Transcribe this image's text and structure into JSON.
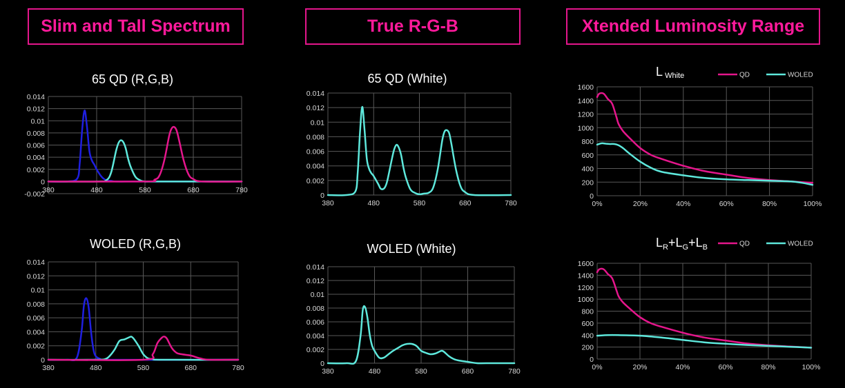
{
  "headers": [
    "Slim and Tall Spectrum",
    "True R-G-B",
    "Xtended Luminosity Range"
  ],
  "colors": {
    "accent": "#e5168c",
    "blue": "#1f1fe0",
    "cyan": "#5ee8dc",
    "magenta": "#e5168c",
    "grid": "#595959"
  },
  "chart_data": [
    {
      "id": "qd-rgb",
      "type": "line",
      "title": "65 QD (R,G,B)",
      "xlim": [
        380,
        780
      ],
      "ylim": [
        -0.002,
        0.014
      ],
      "xticks": [
        380,
        480,
        580,
        680,
        780
      ],
      "yticks": [
        -0.002,
        0,
        0.002,
        0.004,
        0.006,
        0.008,
        0.01,
        0.012,
        0.014
      ],
      "ytick_labels": [
        "-0.002",
        "0",
        "0.002",
        "0.004",
        "0.006",
        "0.008",
        "0.01",
        "0.012",
        "0.014"
      ],
      "series": [
        {
          "color": "blue",
          "x": [
            380,
            420,
            440,
            445,
            450,
            455,
            460,
            465,
            470,
            475,
            480,
            490,
            500,
            510,
            520,
            560,
            640,
            780
          ],
          "y": [
            0,
            0,
            0.0005,
            0.003,
            0.0085,
            0.0117,
            0.009,
            0.005,
            0.0035,
            0.0028,
            0.002,
            0.0008,
            0.0002,
            0.0001,
            0,
            0,
            0,
            0
          ]
        },
        {
          "color": "cyan",
          "x": [
            380,
            480,
            500,
            510,
            520,
            525,
            530,
            535,
            540,
            545,
            550,
            560,
            570,
            580,
            600,
            780
          ],
          "y": [
            0,
            0,
            0.0002,
            0.0015,
            0.005,
            0.0063,
            0.0068,
            0.0065,
            0.0055,
            0.0038,
            0.0025,
            0.0008,
            0.0002,
            0,
            0,
            0
          ]
        },
        {
          "color": "magenta",
          "x": [
            380,
            580,
            600,
            610,
            620,
            630,
            635,
            640,
            645,
            650,
            660,
            670,
            680,
            700,
            780
          ],
          "y": [
            0,
            0,
            0.0003,
            0.001,
            0.0035,
            0.0075,
            0.0087,
            0.009,
            0.0085,
            0.007,
            0.0035,
            0.0012,
            0.0004,
            0,
            0
          ]
        }
      ]
    },
    {
      "id": "woled-rgb",
      "type": "line",
      "title": "WOLED (R,G,B)",
      "xlim": [
        380,
        780
      ],
      "ylim": [
        0,
        0.014
      ],
      "xticks": [
        380,
        480,
        580,
        680,
        780
      ],
      "yticks": [
        0,
        0.002,
        0.004,
        0.006,
        0.008,
        0.01,
        0.012,
        0.014
      ],
      "ytick_labels": [
        "0",
        "0.002",
        "0.004",
        "0.006",
        "0.008",
        "0.01",
        "0.012",
        "0.014"
      ],
      "series": [
        {
          "color": "blue",
          "x": [
            380,
            420,
            440,
            450,
            455,
            460,
            465,
            470,
            475,
            480,
            490,
            500,
            780
          ],
          "y": [
            0,
            0,
            0.0003,
            0.004,
            0.0078,
            0.0088,
            0.0075,
            0.004,
            0.0015,
            0.0005,
            0.0001,
            0,
            0
          ]
        },
        {
          "color": "cyan",
          "x": [
            380,
            480,
            500,
            510,
            520,
            530,
            540,
            550,
            555,
            560,
            570,
            580,
            590,
            600,
            620,
            780
          ],
          "y": [
            0,
            0,
            0.0001,
            0.0006,
            0.0015,
            0.0027,
            0.0029,
            0.0032,
            0.0033,
            0.003,
            0.002,
            0.0008,
            0.0002,
            0.0001,
            0,
            0
          ]
        },
        {
          "color": "magenta",
          "x": [
            380,
            580,
            600,
            610,
            620,
            625,
            630,
            640,
            650,
            660,
            680,
            700,
            720,
            780
          ],
          "y": [
            0,
            0,
            0.0008,
            0.0024,
            0.0032,
            0.0033,
            0.003,
            0.0017,
            0.001,
            0.0008,
            0.0006,
            0.0002,
            0,
            0
          ]
        }
      ]
    },
    {
      "id": "qd-white",
      "type": "line",
      "title": "65 QD (White)",
      "xlim": [
        380,
        780
      ],
      "ylim": [
        0,
        0.014
      ],
      "xticks": [
        380,
        480,
        580,
        680,
        780
      ],
      "yticks": [
        0,
        0.002,
        0.004,
        0.006,
        0.008,
        0.01,
        0.012,
        0.014
      ],
      "ytick_labels": [
        "0",
        "0.002",
        "0.004",
        "0.006",
        "0.008",
        "0.01",
        "0.012",
        "0.014"
      ],
      "series": [
        {
          "color": "cyan",
          "x": [
            380,
            420,
            440,
            445,
            450,
            455,
            460,
            465,
            470,
            475,
            480,
            490,
            495,
            500,
            505,
            510,
            520,
            525,
            530,
            535,
            540,
            545,
            550,
            560,
            570,
            580,
            590,
            600,
            610,
            620,
            630,
            635,
            640,
            645,
            650,
            660,
            670,
            680,
            700,
            780
          ],
          "y": [
            0,
            0,
            0.0005,
            0.003,
            0.0085,
            0.0121,
            0.009,
            0.005,
            0.0036,
            0.003,
            0.0026,
            0.0015,
            0.0009,
            0.0008,
            0.0011,
            0.002,
            0.005,
            0.0063,
            0.0069,
            0.0065,
            0.0055,
            0.0038,
            0.0025,
            0.0008,
            0.0003,
            0.0001,
            0.0002,
            0.0003,
            0.001,
            0.0035,
            0.0075,
            0.0087,
            0.0089,
            0.0085,
            0.007,
            0.0035,
            0.0012,
            0.0004,
            0,
            0
          ]
        }
      ]
    },
    {
      "id": "woled-white",
      "type": "line",
      "title": "WOLED (White)",
      "xlim": [
        380,
        780
      ],
      "ylim": [
        0,
        0.014
      ],
      "xticks": [
        380,
        480,
        580,
        680,
        780
      ],
      "yticks": [
        0,
        0.002,
        0.004,
        0.006,
        0.008,
        0.01,
        0.012,
        0.014
      ],
      "ytick_labels": [
        "0",
        "0.002",
        "0.004",
        "0.006",
        "0.008",
        "0.01",
        "0.012",
        "0.014"
      ],
      "series": [
        {
          "color": "cyan",
          "x": [
            380,
            420,
            440,
            450,
            455,
            460,
            465,
            470,
            475,
            480,
            490,
            500,
            510,
            520,
            530,
            540,
            550,
            560,
            570,
            580,
            590,
            600,
            610,
            620,
            625,
            630,
            640,
            650,
            660,
            680,
            700,
            720,
            780
          ],
          "y": [
            0,
            0,
            0.0003,
            0.004,
            0.0078,
            0.0081,
            0.0065,
            0.004,
            0.0025,
            0.0018,
            0.0008,
            0.0008,
            0.0013,
            0.0018,
            0.0022,
            0.0026,
            0.0028,
            0.0028,
            0.0025,
            0.0018,
            0.0015,
            0.0013,
            0.0014,
            0.0017,
            0.0018,
            0.0016,
            0.001,
            0.0006,
            0.0004,
            0.0002,
            0,
            0,
            0
          ]
        }
      ]
    },
    {
      "id": "l-white",
      "type": "line",
      "title_main": "L",
      "title_sub": " White",
      "title_parts": [],
      "xlim": [
        0,
        100
      ],
      "ylim": [
        0,
        1600
      ],
      "xticks": [
        0,
        20,
        40,
        60,
        80,
        100
      ],
      "xtick_labels": [
        "0%",
        "20%",
        "40%",
        "60%",
        "80%",
        "100%"
      ],
      "yticks": [
        0,
        200,
        400,
        600,
        800,
        1000,
        1200,
        1400,
        1600
      ],
      "ytick_labels": [
        "0",
        "200",
        "400",
        "600",
        "800",
        "1000",
        "1200",
        "1400",
        "1600"
      ],
      "legend": [
        "QD",
        "WOLED"
      ],
      "series": [
        {
          "name": "QD",
          "color": "magenta",
          "x": [
            0,
            1,
            3,
            5,
            7,
            9,
            10,
            12,
            15,
            20,
            25,
            30,
            40,
            50,
            60,
            70,
            80,
            90,
            100
          ],
          "y": [
            1450,
            1500,
            1500,
            1420,
            1350,
            1150,
            1050,
            950,
            850,
            700,
            600,
            540,
            440,
            360,
            310,
            260,
            230,
            210,
            190
          ]
        },
        {
          "name": "WOLED",
          "color": "cyan",
          "x": [
            0,
            2,
            4,
            6,
            8,
            10,
            12,
            15,
            20,
            25,
            30,
            40,
            50,
            60,
            70,
            80,
            90,
            95,
            100
          ],
          "y": [
            750,
            770,
            765,
            760,
            760,
            740,
            700,
            620,
            500,
            410,
            350,
            300,
            260,
            240,
            230,
            220,
            210,
            190,
            160
          ]
        }
      ]
    },
    {
      "id": "l-rgb",
      "type": "line",
      "title_main": "",
      "title_sub": "",
      "title_parts": [
        [
          "L",
          "R"
        ],
        [
          "+L",
          "G"
        ],
        [
          "+L",
          "B"
        ]
      ],
      "xlim": [
        0,
        100
      ],
      "ylim": [
        0,
        1600
      ],
      "xticks": [
        0,
        20,
        40,
        60,
        80,
        100
      ],
      "xtick_labels": [
        "0%",
        "20%",
        "40%",
        "60%",
        "80%",
        "100%"
      ],
      "yticks": [
        0,
        200,
        400,
        600,
        800,
        1000,
        1200,
        1400,
        1600
      ],
      "ytick_labels": [
        "0",
        "200",
        "400",
        "600",
        "800",
        "1000",
        "1200",
        "1400",
        "1600"
      ],
      "legend": [
        "QD",
        "WOLED"
      ],
      "series": [
        {
          "name": "QD",
          "color": "magenta",
          "x": [
            0,
            1,
            3,
            5,
            7,
            9,
            10,
            12,
            15,
            20,
            25,
            30,
            40,
            50,
            60,
            70,
            80,
            90,
            100
          ],
          "y": [
            1450,
            1500,
            1500,
            1420,
            1350,
            1150,
            1050,
            950,
            850,
            700,
            600,
            540,
            440,
            360,
            310,
            260,
            230,
            210,
            190
          ]
        },
        {
          "name": "WOLED",
          "color": "cyan",
          "x": [
            0,
            5,
            10,
            20,
            30,
            40,
            50,
            60,
            70,
            80,
            90,
            100
          ],
          "y": [
            390,
            400,
            400,
            390,
            360,
            320,
            280,
            255,
            235,
            220,
            205,
            190
          ]
        }
      ]
    }
  ]
}
